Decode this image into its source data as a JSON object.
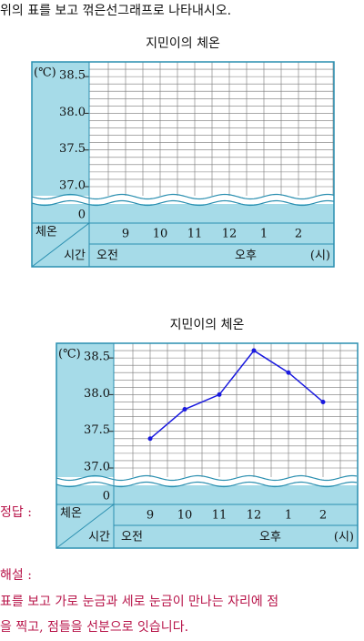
{
  "instruction": "위의 표를 보고 꺾은선그래프로 나타내시오.",
  "answer_label": "정답 :",
  "explanation_label": "해설 :",
  "explanation": [
    "표를 보고 가로 눈금과 세로 눈금이 만나는 자리에 점",
    "을 찍고, 점들을 선분으로 잇습니다."
  ],
  "chart_data": [
    {
      "type": "line",
      "title": "지민이의 체온",
      "y_unit": "(℃)",
      "zero_label": "0",
      "value_row_label": "체온",
      "time_row_label": "시간",
      "categories": [
        "9",
        "10",
        "11",
        "12",
        "1",
        "2"
      ],
      "periods": [
        "오전",
        "오후"
      ],
      "x_unit": "(시)",
      "ylim": [
        37.0,
        38.7
      ],
      "yticks": [
        {
          "value": 37.0,
          "label": "37.0"
        },
        37.5,
        {
          "value": 38.0,
          "label": "38.0"
        },
        38.5
      ]
    },
    {
      "type": "line",
      "title": "지민이의 체온",
      "y_unit": "(℃)",
      "zero_label": "0",
      "value_row_label": "체온",
      "time_row_label": "시간",
      "categories": [
        "9",
        "10",
        "11",
        "12",
        "1",
        "2"
      ],
      "periods": [
        "오전",
        "오후"
      ],
      "x_unit": "(시)",
      "values": [
        37.4,
        37.8,
        38.0,
        38.6,
        38.3,
        37.9
      ],
      "color": "#1a1adf",
      "ylim": [
        37.0,
        38.7
      ],
      "yticks": [
        {
          "value": 37.0,
          "label": "37.0"
        },
        37.5,
        {
          "value": 38.0,
          "label": "38.0"
        },
        38.5
      ]
    }
  ]
}
